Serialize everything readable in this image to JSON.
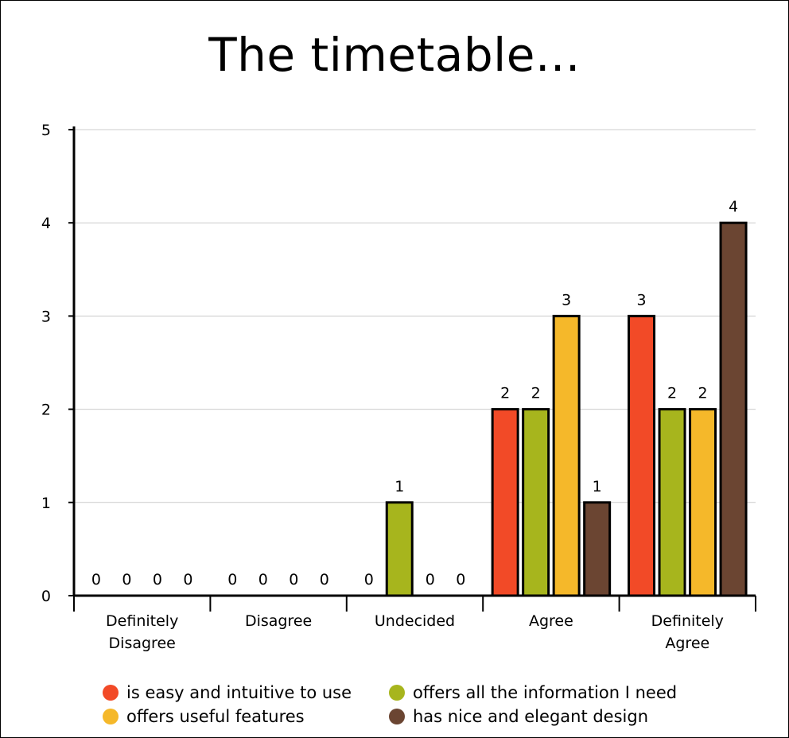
{
  "chart_data": {
    "type": "bar",
    "title": "The timetable...",
    "xlabel": "",
    "ylabel": "",
    "ylim": [
      0,
      5
    ],
    "yticks": [
      0,
      1,
      2,
      3,
      4,
      5
    ],
    "grid": true,
    "legend_position": "bottom",
    "categories": [
      "Definitely Disagree",
      "Disagree",
      "Undecided",
      "Agree",
      "Definitely Agree"
    ],
    "series": [
      {
        "name": "is easy and intuitive to use",
        "color": "#f24a27",
        "values": [
          0,
          0,
          0,
          2,
          3
        ]
      },
      {
        "name": "offers all the information I need",
        "color": "#a7b51d",
        "values": [
          0,
          0,
          1,
          2,
          2
        ]
      },
      {
        "name": "offers useful features",
        "color": "#f5b82a",
        "values": [
          0,
          0,
          0,
          3,
          2
        ]
      },
      {
        "name": "has nice and elegant design",
        "color": "#6b4532",
        "values": [
          0,
          0,
          0,
          1,
          4
        ]
      }
    ]
  }
}
